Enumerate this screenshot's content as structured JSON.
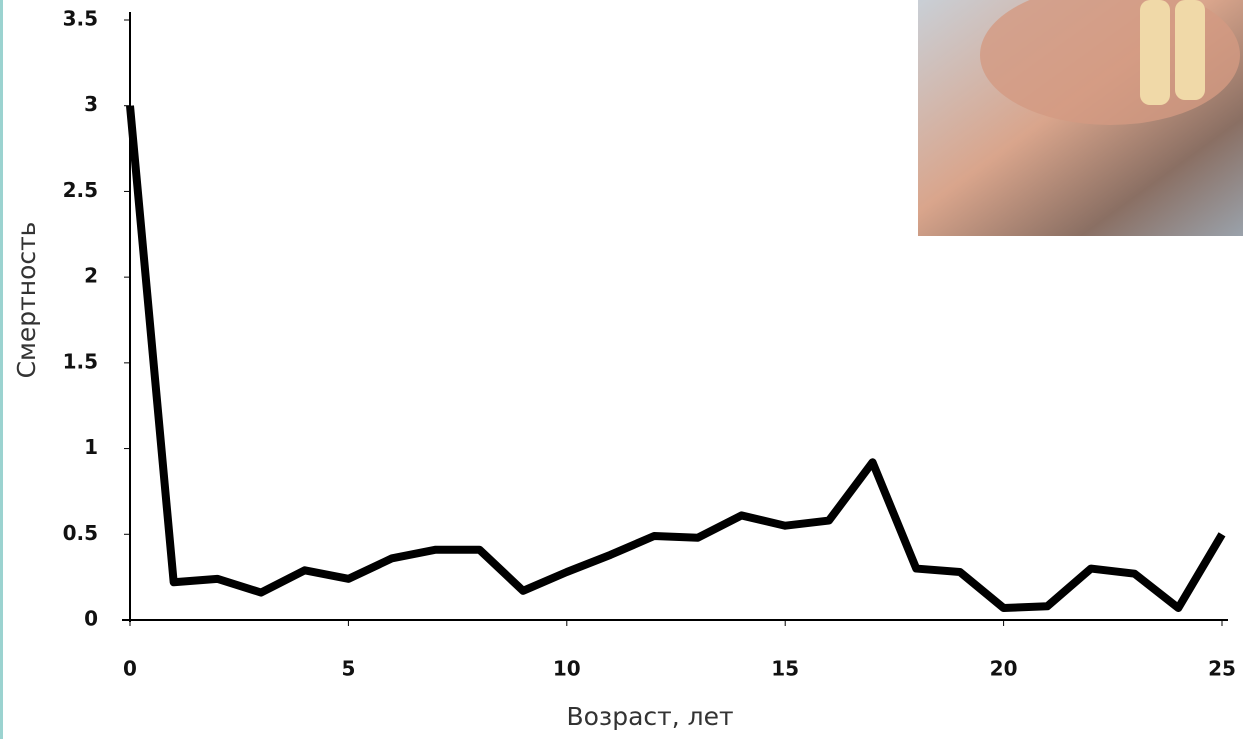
{
  "chart_data": {
    "type": "line",
    "x_label": "Возраст, лет",
    "y_label": "Смертность",
    "x": [
      0,
      1,
      2,
      3,
      4,
      5,
      6,
      7,
      8,
      9,
      10,
      11,
      12,
      13,
      14,
      15,
      16,
      17,
      18,
      19,
      20,
      21,
      22,
      23,
      24,
      25
    ],
    "series": [
      {
        "color": "#000000",
        "values": [
          3.0,
          0.22,
          0.24,
          0.16,
          0.29,
          0.24,
          0.36,
          0.41,
          0.41,
          0.17,
          0.28,
          0.38,
          0.49,
          0.48,
          0.61,
          0.55,
          0.58,
          0.92,
          0.3,
          0.28,
          0.07,
          0.08,
          0.3,
          0.27,
          0.07,
          0.5
        ]
      }
    ],
    "xlim": [
      0,
      25
    ],
    "xticks": [
      0,
      5,
      10,
      15,
      20,
      25
    ],
    "ylim": [
      0,
      3.5
    ],
    "yticks": [
      0,
      0.5,
      1,
      1.5,
      2,
      2.5,
      3,
      3.5
    ],
    "grid": false
  }
}
